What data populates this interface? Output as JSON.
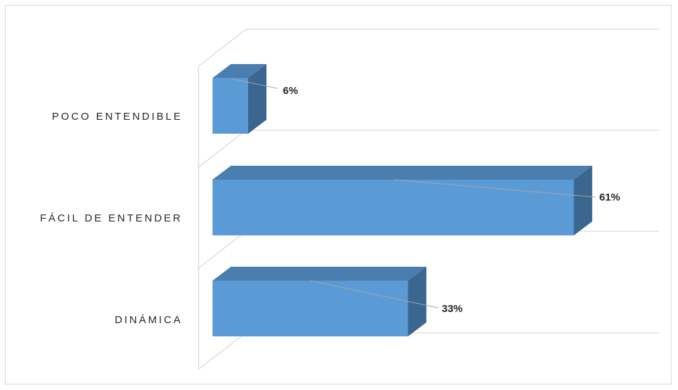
{
  "chart_data": {
    "type": "bar",
    "orientation": "horizontal",
    "style": "3d",
    "categories": [
      "POCO ENTENDIBLE",
      "FÁCIL DE ENTENDER",
      "DINÁMICA"
    ],
    "values": [
      6,
      61,
      33
    ],
    "data_labels": [
      "6%",
      "61%",
      "33%"
    ],
    "unit": "%",
    "xlim": [
      0,
      75
    ],
    "grid": true,
    "colors": {
      "bar_front": "#5B9BD5",
      "bar_top": "#4A7EAF",
      "bar_side": "#3A6690",
      "grid": "#d9d9d9",
      "leader": "#a6a6a6"
    }
  }
}
